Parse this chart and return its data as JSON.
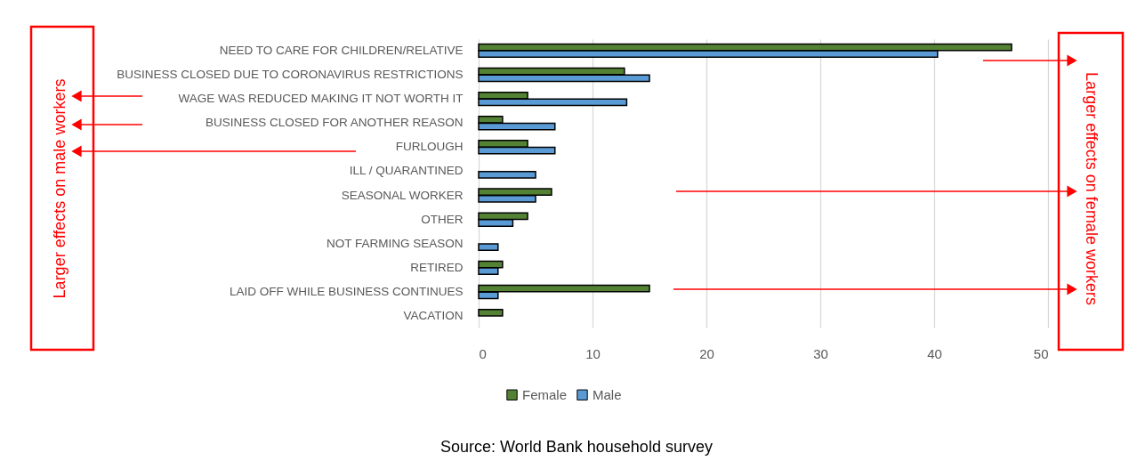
{
  "chart_data": {
    "type": "bar",
    "orientation": "horizontal",
    "categories": [
      "NEED TO CARE FOR CHILDREN/RELATIVE",
      "BUSINESS CLOSED DUE TO CORONAVIRUS RESTRICTIONS",
      "WAGE WAS REDUCED MAKING IT NOT WORTH IT",
      "BUSINESS CLOSED FOR ANOTHER REASON",
      "FURLOUGH",
      "ILL / QUARANTINED",
      "SEASONAL WORKER",
      "OTHER",
      "NOT FARMING SEASON",
      "RETIRED",
      "LAID OFF WHILE BUSINESS CONTINUES",
      "VACATION"
    ],
    "series": [
      {
        "name": "Female",
        "color": "#548235",
        "values": [
          46.8,
          12.8,
          4.3,
          2.1,
          4.3,
          null,
          6.4,
          4.3,
          null,
          2.1,
          15.0,
          2.1
        ]
      },
      {
        "name": "Male",
        "color": "#5b9bd5",
        "values": [
          40.3,
          15.0,
          13.0,
          6.7,
          6.7,
          5.0,
          5.0,
          3.0,
          1.7,
          1.7,
          1.7,
          null
        ]
      }
    ],
    "xlim": [
      0,
      50
    ],
    "xticks": [
      0,
      10,
      20,
      30,
      40,
      50
    ],
    "grid": "x",
    "legend": "bottom",
    "annotations": [
      "Larger effects on male workers",
      "Larger effects on female workers",
      "Source: World Bank household survey"
    ]
  }
}
